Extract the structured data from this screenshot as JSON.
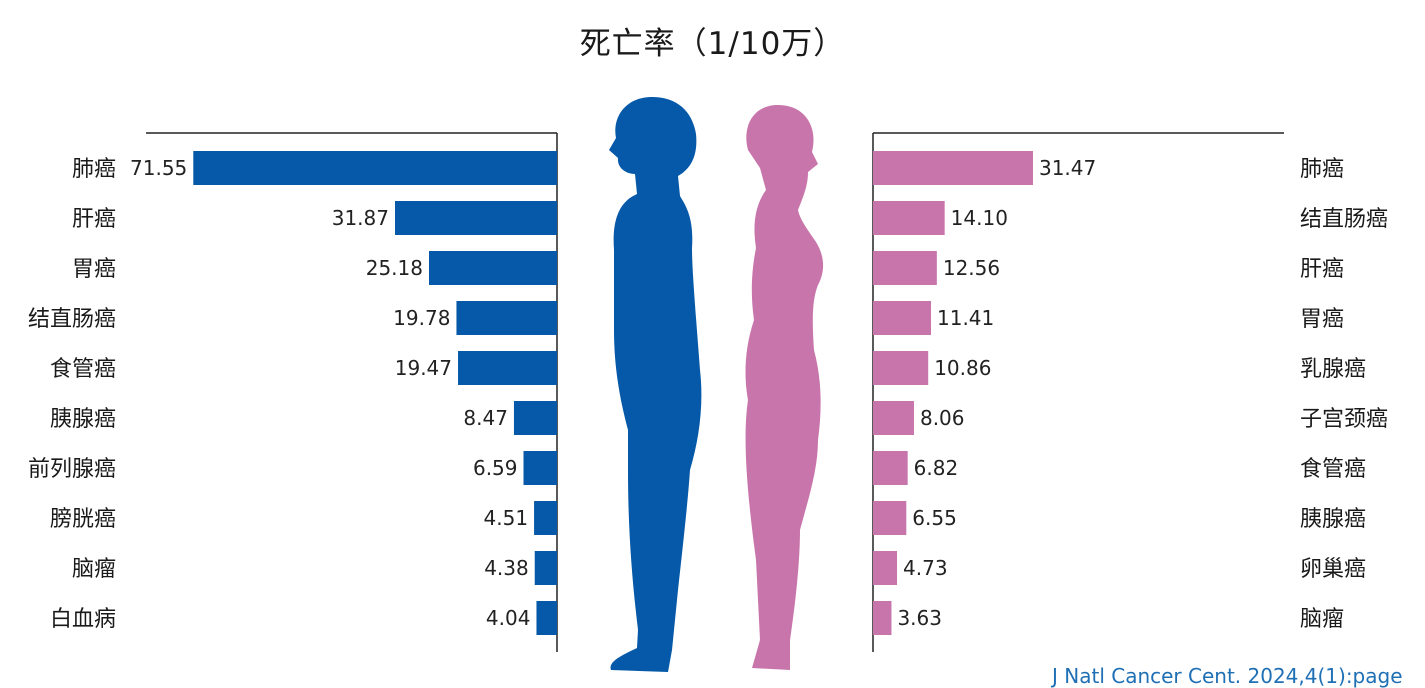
{
  "chart_data": {
    "type": "bar",
    "title": "死亡率（1/10万）",
    "colors": {
      "male": "#0659a8",
      "female": "#c875ab"
    },
    "icons": {
      "male": "male-silhouette-icon",
      "female": "female-silhouette-icon"
    },
    "xlim": [
      0,
      72
    ],
    "series": [
      {
        "categories": [
          "肺癌",
          "肝癌",
          "胃癌",
          "结直肠癌",
          "食管癌",
          "胰腺癌",
          "前列腺癌",
          "膀胱癌",
          "脑瘤",
          "白血病"
        ],
        "values": [
          71.55,
          31.87,
          25.18,
          19.78,
          19.47,
          8.47,
          6.59,
          4.51,
          4.38,
          4.04
        ],
        "labels": [
          "71.55",
          "31.87",
          "25.18",
          "19.78",
          "19.47",
          "8.47",
          "6.59",
          "4.51",
          "4.38",
          "4.04"
        ]
      },
      {
        "categories": [
          "肺癌",
          "结直肠癌",
          "肝癌",
          "胃癌",
          "乳腺癌",
          "子宫颈癌",
          "食管癌",
          "胰腺癌",
          "卵巢癌",
          "脑瘤"
        ],
        "values": [
          31.47,
          14.1,
          12.56,
          11.41,
          10.86,
          8.06,
          6.82,
          6.55,
          4.73,
          3.63
        ],
        "labels": [
          "31.47",
          "14.10",
          "12.56",
          "11.41",
          "10.86",
          "8.06",
          "6.82",
          "6.55",
          "4.73",
          "3.63"
        ]
      }
    ]
  },
  "source": "J Natl Cancer Cent. 2024,4(1):page"
}
